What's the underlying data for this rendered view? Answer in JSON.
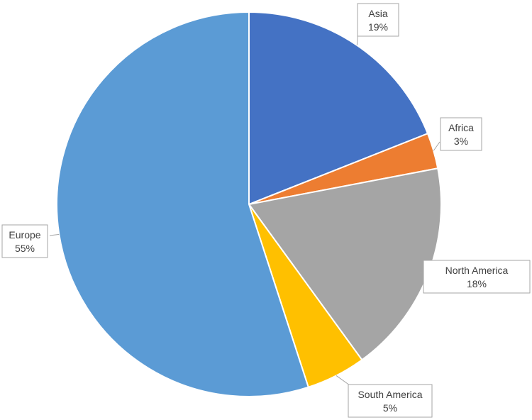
{
  "chart_data": {
    "type": "pie",
    "title": "",
    "start_angle_deg": 0,
    "direction": "clockwise",
    "slices": [
      {
        "label": "Asia",
        "value": 19,
        "display": "19%",
        "color": "#4472c4"
      },
      {
        "label": "Africa",
        "value": 3,
        "display": "3%",
        "color": "#ed7d31"
      },
      {
        "label": "North America",
        "value": 18,
        "display": "18%",
        "color": "#a5a5a5"
      },
      {
        "label": "South America",
        "value": 5,
        "display": "5%",
        "color": "#ffc000"
      },
      {
        "label": "Europe",
        "value": 55,
        "display": "55%",
        "color": "#5b9bd5"
      }
    ],
    "legend": "none"
  }
}
